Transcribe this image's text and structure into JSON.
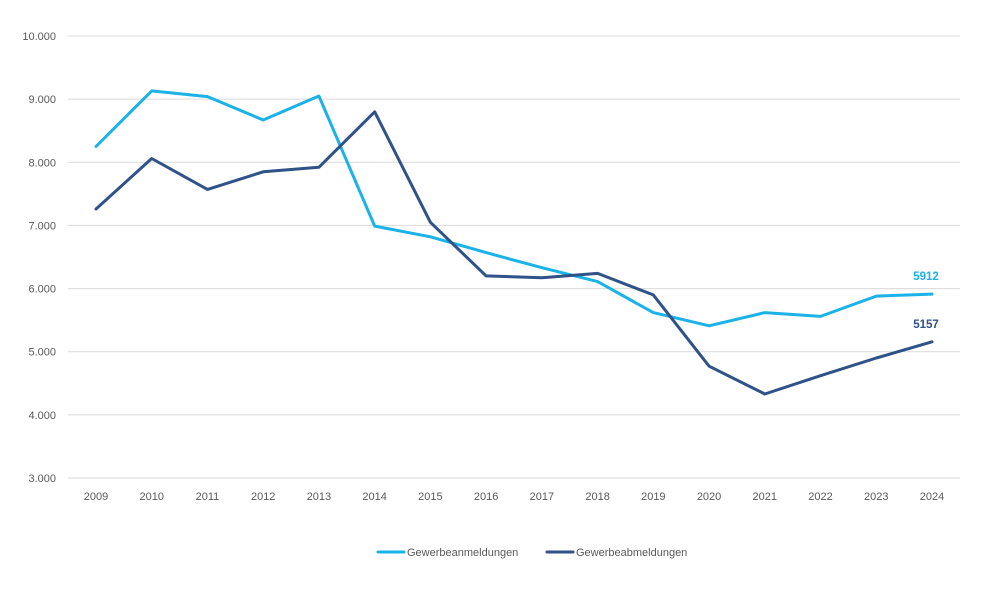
{
  "chart_data": {
    "type": "line",
    "title": "",
    "xlabel": "",
    "ylabel": "",
    "ylim": [
      3000,
      10000
    ],
    "y_ticks": [
      3000,
      4000,
      5000,
      6000,
      7000,
      8000,
      9000,
      10000
    ],
    "y_tick_labels": [
      "3.000",
      "4.000",
      "5.000",
      "6.000",
      "7.000",
      "8.000",
      "9.000",
      "10.000"
    ],
    "grid": true,
    "legend_position": "bottom-center",
    "categories": [
      "2009",
      "2010",
      "2011",
      "2012",
      "2013",
      "2014",
      "2015",
      "2016",
      "2017",
      "2018",
      "2019",
      "2020",
      "2021",
      "2022",
      "2023",
      "2024"
    ],
    "series": [
      {
        "name": "Gewerbeanmeldungen",
        "color": "#1ab2e8",
        "values": [
          8250,
          9130,
          9040,
          8670,
          9050,
          6990,
          6820,
          6570,
          6330,
          6110,
          5620,
          5410,
          5620,
          5560,
          5880,
          5912
        ],
        "end_label": "5912"
      },
      {
        "name": "Gewerbeabmeldungen",
        "color": "#2f5289",
        "values": [
          7260,
          8060,
          7570,
          7850,
          7920,
          8800,
          7050,
          6200,
          6170,
          6240,
          5900,
          4770,
          4330,
          4620,
          4900,
          5157
        ],
        "end_label": "5157"
      }
    ]
  }
}
